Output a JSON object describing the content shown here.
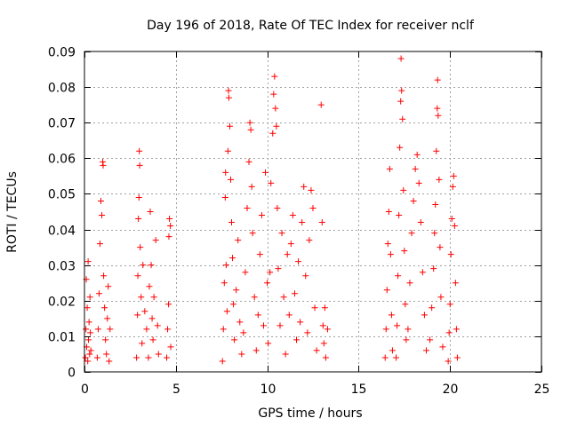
{
  "chart_data": {
    "type": "scatter",
    "title": "Day 196 of 2018, Rate Of TEC Index for receiver nclf",
    "xlabel": "GPS time / hours",
    "ylabel": "ROTI / TECUs",
    "xlim": [
      0,
      25
    ],
    "ylim": [
      0,
      0.09
    ],
    "x_ticks": [
      0,
      5,
      10,
      15,
      20,
      25
    ],
    "x_tick_labels": [
      "0",
      "5",
      "10",
      "15",
      "20",
      "25"
    ],
    "y_ticks": [
      0,
      0.01,
      0.02,
      0.03,
      0.04,
      0.05,
      0.06,
      0.07,
      0.08,
      0.09
    ],
    "y_tick_labels": [
      "0",
      "0.01",
      "0.02",
      "0.03",
      "0.04",
      "0.05",
      "0.06",
      "0.07",
      "0.08",
      "0.09"
    ],
    "grid": true,
    "marker": "plus",
    "color": "#ff0000",
    "series": [
      {
        "name": "ROTI",
        "points": [
          [
            0.05,
            0.004
          ],
          [
            0.08,
            0.012
          ],
          [
            0.1,
            0.026
          ],
          [
            0.12,
            0.007
          ],
          [
            0.15,
            0.018
          ],
          [
            0.18,
            0.003
          ],
          [
            0.2,
            0.031
          ],
          [
            0.22,
            0.009
          ],
          [
            0.25,
            0.014
          ],
          [
            0.28,
            0.005
          ],
          [
            0.3,
            0.021
          ],
          [
            0.32,
            0.011
          ],
          [
            0.35,
            0.006
          ],
          [
            0.7,
            0.004
          ],
          [
            0.75,
            0.012
          ],
          [
            0.8,
            0.022
          ],
          [
            0.85,
            0.036
          ],
          [
            0.9,
            0.048
          ],
          [
            0.95,
            0.044
          ],
          [
            1.0,
            0.059
          ],
          [
            1.02,
            0.058
          ],
          [
            1.05,
            0.027
          ],
          [
            1.1,
            0.018
          ],
          [
            1.15,
            0.009
          ],
          [
            1.2,
            0.005
          ],
          [
            1.25,
            0.015
          ],
          [
            1.3,
            0.024
          ],
          [
            1.35,
            0.003
          ],
          [
            1.4,
            0.012
          ],
          [
            2.85,
            0.004
          ],
          [
            2.9,
            0.016
          ],
          [
            2.92,
            0.027
          ],
          [
            2.95,
            0.043
          ],
          [
            2.98,
            0.049
          ],
          [
            3.0,
            0.062
          ],
          [
            3.02,
            0.058
          ],
          [
            3.05,
            0.035
          ],
          [
            3.1,
            0.021
          ],
          [
            3.15,
            0.008
          ],
          [
            3.2,
            0.03
          ],
          [
            3.3,
            0.017
          ],
          [
            3.4,
            0.012
          ],
          [
            3.5,
            0.004
          ],
          [
            3.55,
            0.024
          ],
          [
            3.6,
            0.045
          ],
          [
            3.65,
            0.03
          ],
          [
            3.7,
            0.015
          ],
          [
            3.75,
            0.009
          ],
          [
            3.8,
            0.021
          ],
          [
            3.9,
            0.037
          ],
          [
            4.0,
            0.013
          ],
          [
            4.05,
            0.005
          ],
          [
            4.5,
            0.004
          ],
          [
            4.55,
            0.012
          ],
          [
            4.6,
            0.019
          ],
          [
            4.62,
            0.038
          ],
          [
            4.65,
            0.043
          ],
          [
            4.7,
            0.041
          ],
          [
            4.72,
            0.007
          ],
          [
            7.55,
            0.003
          ],
          [
            7.6,
            0.012
          ],
          [
            7.65,
            0.025
          ],
          [
            7.7,
            0.049
          ],
          [
            7.72,
            0.056
          ],
          [
            7.75,
            0.03
          ],
          [
            7.8,
            0.017
          ],
          [
            7.85,
            0.062
          ],
          [
            7.88,
            0.079
          ],
          [
            7.9,
            0.077
          ],
          [
            7.95,
            0.069
          ],
          [
            8.0,
            0.054
          ],
          [
            8.05,
            0.042
          ],
          [
            8.1,
            0.032
          ],
          [
            8.15,
            0.019
          ],
          [
            8.2,
            0.009
          ],
          [
            8.3,
            0.023
          ],
          [
            8.4,
            0.037
          ],
          [
            8.5,
            0.014
          ],
          [
            8.6,
            0.005
          ],
          [
            8.7,
            0.011
          ],
          [
            8.8,
            0.028
          ],
          [
            8.9,
            0.046
          ],
          [
            9.0,
            0.059
          ],
          [
            9.05,
            0.07
          ],
          [
            9.1,
            0.068
          ],
          [
            9.15,
            0.052
          ],
          [
            9.2,
            0.039
          ],
          [
            9.3,
            0.021
          ],
          [
            9.4,
            0.006
          ],
          [
            9.5,
            0.016
          ],
          [
            9.6,
            0.033
          ],
          [
            9.7,
            0.044
          ],
          [
            9.8,
            0.013
          ],
          [
            9.9,
            0.056
          ],
          [
            10.0,
            0.025
          ],
          [
            10.05,
            0.008
          ],
          [
            10.15,
            0.028
          ],
          [
            10.2,
            0.053
          ],
          [
            10.3,
            0.067
          ],
          [
            10.35,
            0.078
          ],
          [
            10.4,
            0.083
          ],
          [
            10.45,
            0.074
          ],
          [
            10.5,
            0.069
          ],
          [
            10.55,
            0.046
          ],
          [
            10.6,
            0.029
          ],
          [
            10.7,
            0.013
          ],
          [
            10.8,
            0.039
          ],
          [
            10.9,
            0.021
          ],
          [
            11.0,
            0.005
          ],
          [
            11.1,
            0.033
          ],
          [
            11.2,
            0.016
          ],
          [
            11.3,
            0.036
          ],
          [
            11.4,
            0.044
          ],
          [
            11.5,
            0.022
          ],
          [
            11.6,
            0.009
          ],
          [
            11.7,
            0.031
          ],
          [
            11.8,
            0.014
          ],
          [
            11.9,
            0.042
          ],
          [
            12.0,
            0.052
          ],
          [
            12.1,
            0.027
          ],
          [
            12.2,
            0.011
          ],
          [
            12.3,
            0.037
          ],
          [
            12.4,
            0.051
          ],
          [
            12.5,
            0.046
          ],
          [
            12.6,
            0.018
          ],
          [
            12.7,
            0.006
          ],
          [
            12.95,
            0.075
          ],
          [
            13.0,
            0.042
          ],
          [
            13.05,
            0.013
          ],
          [
            13.1,
            0.008
          ],
          [
            13.15,
            0.018
          ],
          [
            13.2,
            0.004
          ],
          [
            13.3,
            0.012
          ],
          [
            16.45,
            0.004
          ],
          [
            16.5,
            0.012
          ],
          [
            16.55,
            0.023
          ],
          [
            16.6,
            0.036
          ],
          [
            16.65,
            0.045
          ],
          [
            16.7,
            0.057
          ],
          [
            16.75,
            0.033
          ],
          [
            16.8,
            0.016
          ],
          [
            16.85,
            0.006
          ],
          [
            17.05,
            0.004
          ],
          [
            17.1,
            0.013
          ],
          [
            17.15,
            0.027
          ],
          [
            17.2,
            0.044
          ],
          [
            17.25,
            0.063
          ],
          [
            17.3,
            0.076
          ],
          [
            17.32,
            0.088
          ],
          [
            17.35,
            0.079
          ],
          [
            17.4,
            0.071
          ],
          [
            17.45,
            0.051
          ],
          [
            17.5,
            0.034
          ],
          [
            17.55,
            0.019
          ],
          [
            17.6,
            0.009
          ],
          [
            17.7,
            0.012
          ],
          [
            17.8,
            0.025
          ],
          [
            17.9,
            0.039
          ],
          [
            18.0,
            0.048
          ],
          [
            18.1,
            0.057
          ],
          [
            18.2,
            0.061
          ],
          [
            18.3,
            0.053
          ],
          [
            18.4,
            0.042
          ],
          [
            18.5,
            0.028
          ],
          [
            18.6,
            0.016
          ],
          [
            18.7,
            0.006
          ],
          [
            18.9,
            0.009
          ],
          [
            19.0,
            0.018
          ],
          [
            19.1,
            0.029
          ],
          [
            19.15,
            0.039
          ],
          [
            19.2,
            0.047
          ],
          [
            19.25,
            0.062
          ],
          [
            19.3,
            0.074
          ],
          [
            19.32,
            0.082
          ],
          [
            19.35,
            0.072
          ],
          [
            19.4,
            0.054
          ],
          [
            19.45,
            0.035
          ],
          [
            19.5,
            0.021
          ],
          [
            19.6,
            0.007
          ],
          [
            19.9,
            0.003
          ],
          [
            19.95,
            0.011
          ],
          [
            20.0,
            0.019
          ],
          [
            20.05,
            0.033
          ],
          [
            20.1,
            0.043
          ],
          [
            20.15,
            0.052
          ],
          [
            20.2,
            0.055
          ],
          [
            20.25,
            0.041
          ],
          [
            20.3,
            0.025
          ],
          [
            20.35,
            0.012
          ],
          [
            20.4,
            0.004
          ]
        ]
      }
    ]
  }
}
